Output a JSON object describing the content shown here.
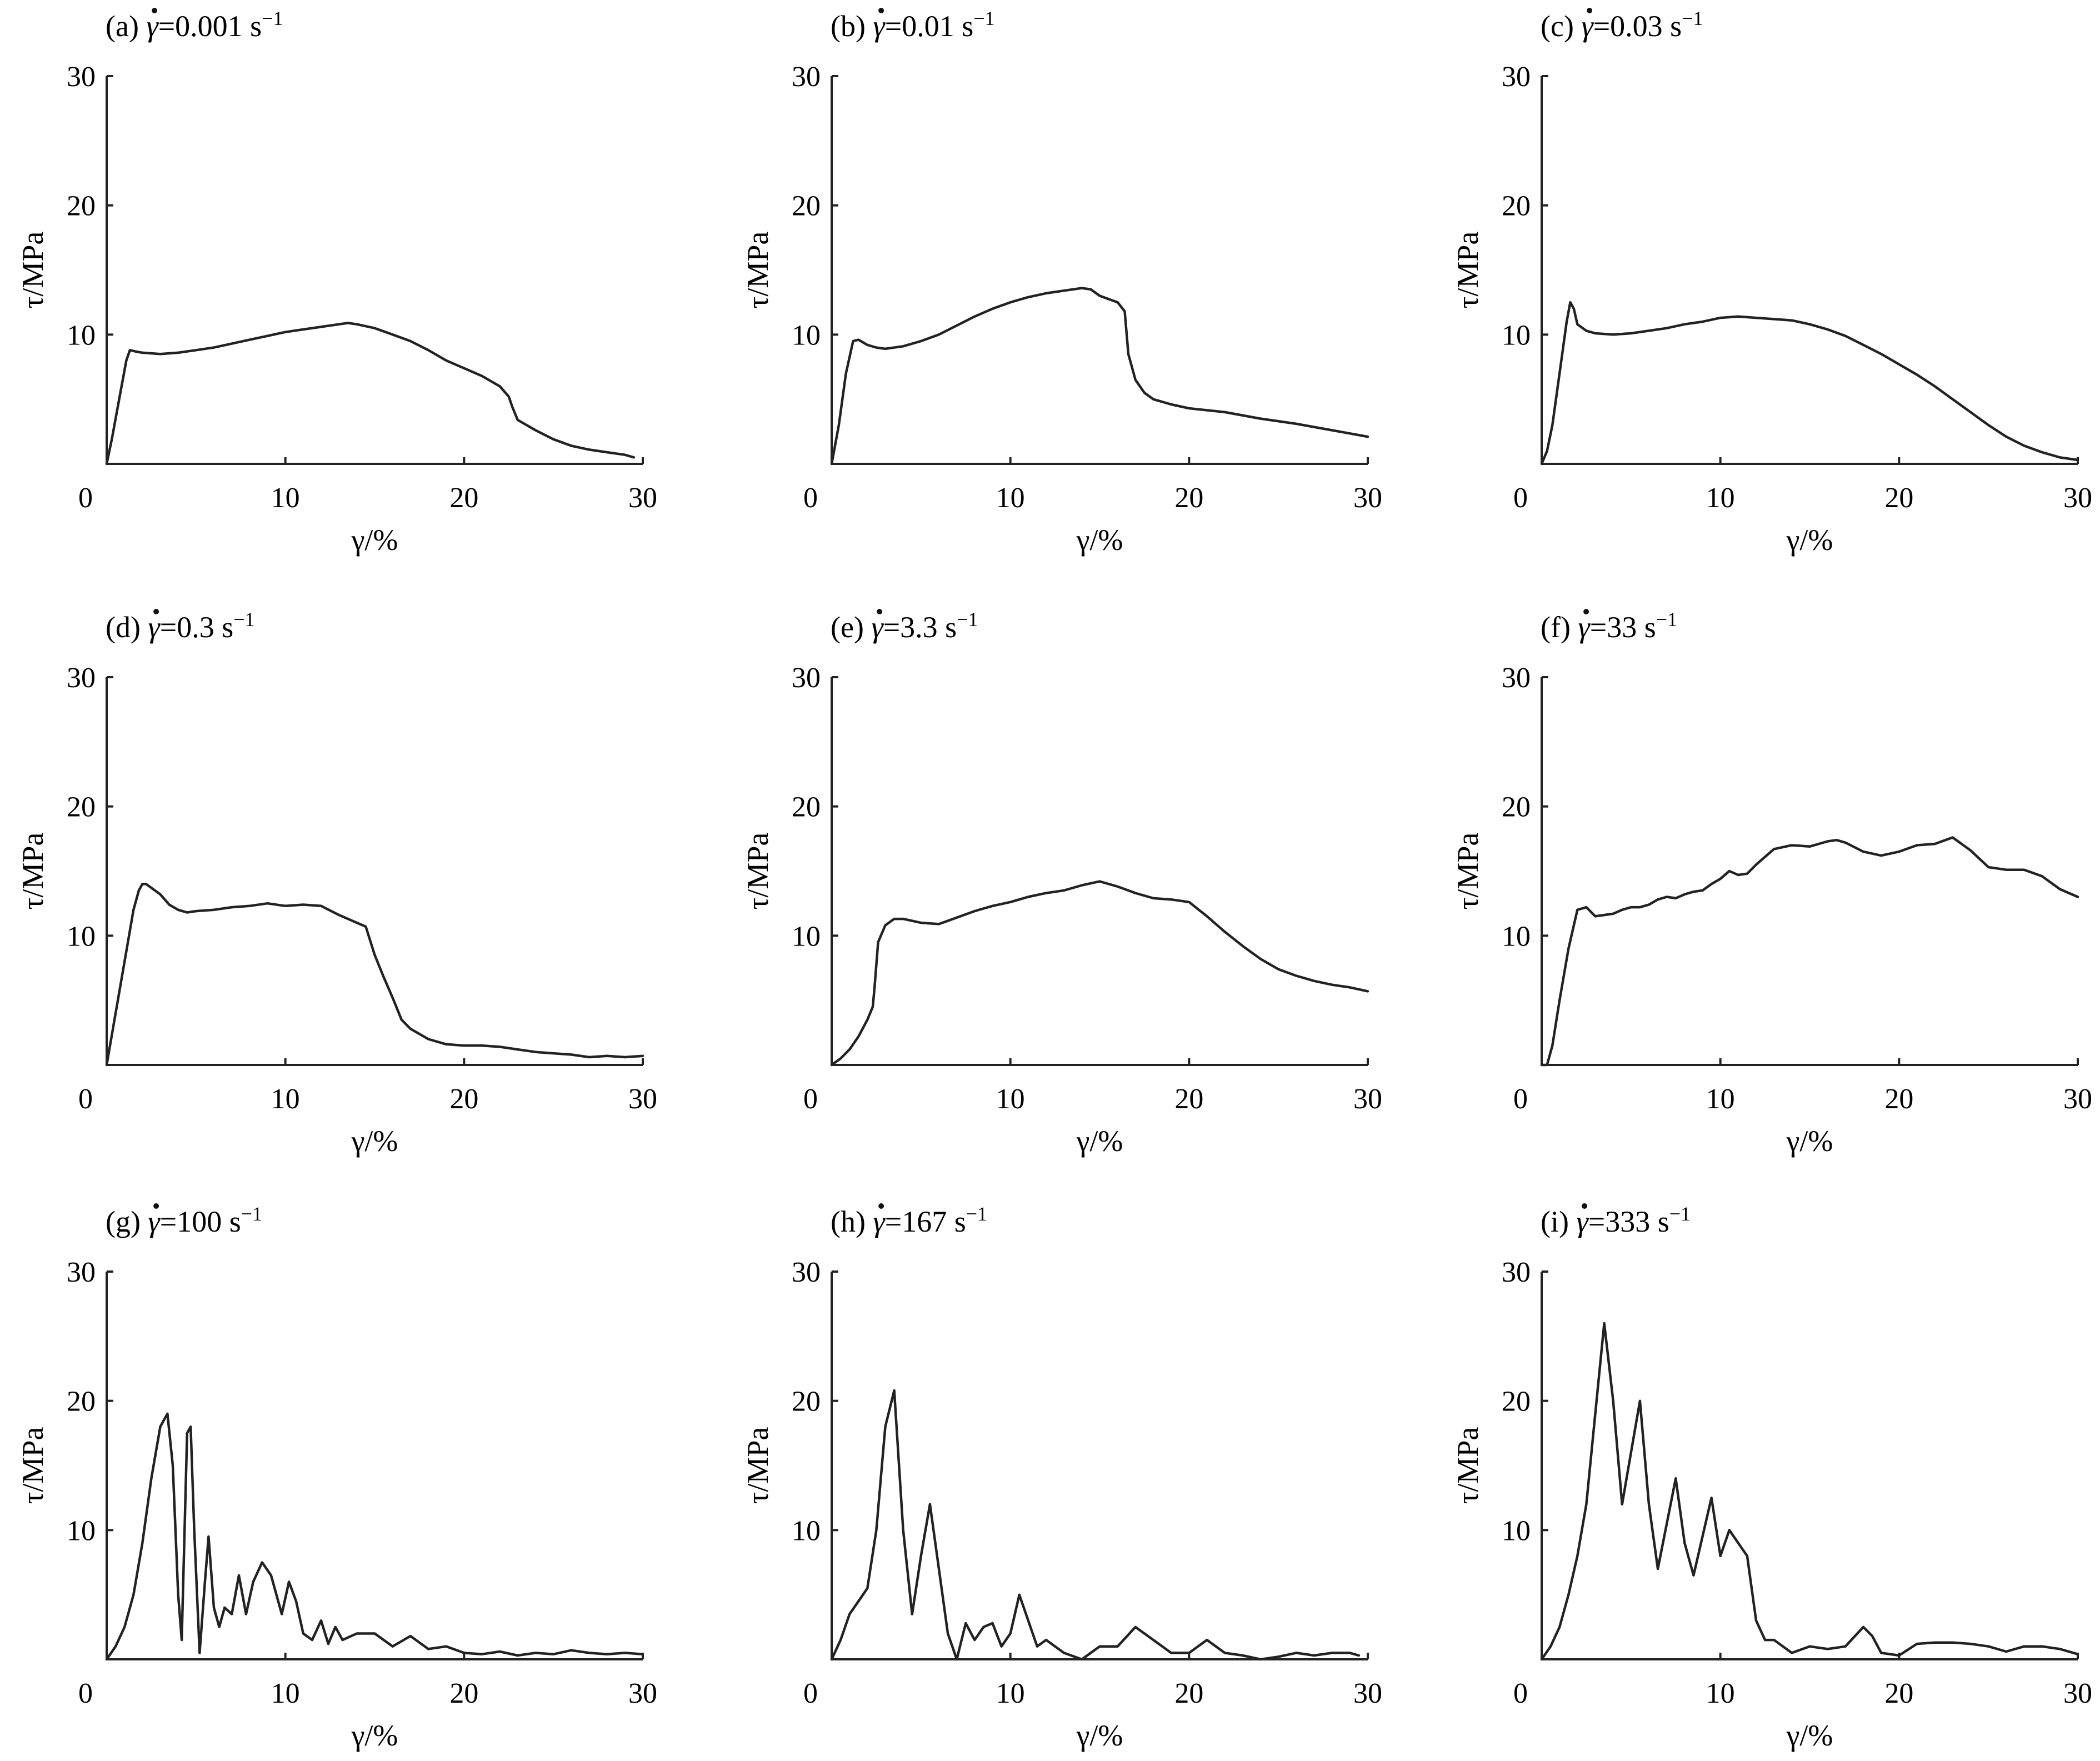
{
  "figure": {
    "chart_data": [
      {
        "type": "line",
        "title": {
          "prefix": "(a) ",
          "symbol": "γ",
          "value": "=0.001 s",
          "sup": "−1"
        },
        "xlabel": "γ/%",
        "ylabel": "τ/MPa",
        "xlim": [
          0,
          30
        ],
        "ylim": [
          0,
          30
        ],
        "xticks": [
          "0",
          "10",
          "20",
          "30"
        ],
        "yticks": [
          "10",
          "20",
          "30"
        ],
        "series": [
          {
            "x": [
              0,
              0.3,
              0.7,
              1.1,
              1.3,
              1.6,
              2,
              3,
              4,
              5,
              6,
              7,
              8,
              9,
              10,
              11,
              12,
              13,
              13.5,
              14,
              15,
              16,
              17,
              18,
              19,
              20,
              21,
              22,
              22.5,
              22.7,
              23,
              24,
              25,
              26,
              27,
              28,
              29,
              29.5
            ],
            "y": [
              0,
              2,
              5,
              8,
              8.8,
              8.7,
              8.6,
              8.5,
              8.6,
              8.8,
              9,
              9.3,
              9.6,
              9.9,
              10.2,
              10.4,
              10.6,
              10.8,
              10.9,
              10.8,
              10.5,
              10,
              9.5,
              8.8,
              8,
              7.4,
              6.8,
              6,
              5.2,
              4.4,
              3.4,
              2.6,
              1.9,
              1.4,
              1.1,
              0.9,
              0.7,
              0.5
            ]
          }
        ]
      },
      {
        "type": "line",
        "title": {
          "prefix": "(b) ",
          "symbol": "γ",
          "value": "=0.01 s",
          "sup": "−1"
        },
        "xlabel": "γ/%",
        "ylabel": "τ/MPa",
        "xlim": [
          0,
          30
        ],
        "ylim": [
          0,
          30
        ],
        "xticks": [
          "0",
          "10",
          "20",
          "30"
        ],
        "yticks": [
          "10",
          "20",
          "30"
        ],
        "series": [
          {
            "x": [
              0,
              0.4,
              0.8,
              1.2,
              1.5,
              2,
              2.5,
              3,
              4,
              5,
              6,
              7,
              8,
              9,
              10,
              11,
              12,
              13,
              14,
              14.5,
              15,
              16,
              16.4,
              16.6,
              17,
              17.5,
              18,
              19,
              20,
              22,
              24,
              26,
              28,
              30
            ],
            "y": [
              0,
              3,
              7,
              9.5,
              9.6,
              9.2,
              9,
              8.9,
              9.1,
              9.5,
              10,
              10.7,
              11.4,
              12,
              12.5,
              12.9,
              13.2,
              13.4,
              13.6,
              13.5,
              13,
              12.5,
              11.8,
              8.5,
              6.5,
              5.5,
              5,
              4.6,
              4.3,
              4,
              3.5,
              3.1,
              2.6,
              2.1
            ]
          }
        ]
      },
      {
        "type": "line",
        "title": {
          "prefix": "(c) ",
          "symbol": "γ",
          "value": "=0.03 s",
          "sup": "−1"
        },
        "xlabel": "γ/%",
        "ylabel": "τ/MPa",
        "xlim": [
          0,
          30
        ],
        "ylim": [
          0,
          30
        ],
        "xticks": [
          "0",
          "10",
          "20",
          "30"
        ],
        "yticks": [
          "10",
          "20",
          "30"
        ],
        "series": [
          {
            "x": [
              0,
              0.3,
              0.6,
              1,
              1.4,
              1.6,
              1.8,
              2,
              2.5,
              3,
              4,
              5,
              6,
              7,
              8,
              9,
              10,
              11,
              12,
              13,
              14,
              15,
              16,
              17,
              18,
              19,
              20,
              21,
              22,
              23,
              24,
              25,
              26,
              27,
              28,
              29,
              30
            ],
            "y": [
              0,
              1,
              3,
              7,
              11,
              12.5,
              12,
              10.8,
              10.3,
              10.1,
              10,
              10.1,
              10.3,
              10.5,
              10.8,
              11,
              11.3,
              11.4,
              11.3,
              11.2,
              11.1,
              10.8,
              10.4,
              9.9,
              9.2,
              8.5,
              7.7,
              6.9,
              6,
              5,
              4,
              3,
              2.1,
              1.4,
              0.9,
              0.5,
              0.3
            ]
          }
        ]
      },
      {
        "type": "line",
        "title": {
          "prefix": "(d) ",
          "symbol": "γ",
          "value": "=0.3 s",
          "sup": "−1"
        },
        "xlabel": "γ/%",
        "ylabel": "τ/MPa",
        "xlim": [
          0,
          30
        ],
        "ylim": [
          0,
          30
        ],
        "xticks": [
          "0",
          "10",
          "20",
          "30"
        ],
        "yticks": [
          "10",
          "20",
          "30"
        ],
        "series": [
          {
            "x": [
              0,
              0.5,
              1,
              1.5,
              1.8,
              2,
              2.2,
              2.5,
              3,
              3.5,
              4,
              4.5,
              5,
              6,
              7,
              8,
              9,
              10,
              11,
              12,
              13,
              14,
              14.5,
              15,
              15.5,
              16,
              16.5,
              17,
              18,
              19,
              20,
              21,
              22,
              23,
              24,
              25,
              26,
              27,
              28,
              29,
              30
            ],
            "y": [
              0,
              4,
              8,
              12,
              13.5,
              14,
              14,
              13.7,
              13.2,
              12.4,
              12,
              11.8,
              11.9,
              12,
              12.2,
              12.3,
              12.5,
              12.3,
              12.4,
              12.3,
              11.6,
              11,
              10.7,
              8.5,
              6.8,
              5.2,
              3.5,
              2.8,
              2,
              1.6,
              1.5,
              1.5,
              1.4,
              1.2,
              1,
              0.9,
              0.8,
              0.6,
              0.7,
              0.6,
              0.7
            ]
          }
        ]
      },
      {
        "type": "line",
        "title": {
          "prefix": "(e) ",
          "symbol": "γ",
          "value": "=3.3 s",
          "sup": "−1"
        },
        "xlabel": "γ/%",
        "ylabel": "τ/MPa",
        "xlim": [
          0,
          30
        ],
        "ylim": [
          0,
          30
        ],
        "xticks": [
          "0",
          "10",
          "20",
          "30"
        ],
        "yticks": [
          "10",
          "20",
          "30"
        ],
        "series": [
          {
            "x": [
              0,
              0.5,
              1,
              1.5,
              2,
              2.3,
              2.4,
              2.6,
              3,
              3.5,
              4,
              5,
              6,
              7,
              8,
              9,
              10,
              11,
              12,
              13,
              14,
              15,
              16,
              17,
              18,
              19,
              20,
              21,
              22,
              23,
              24,
              25,
              26,
              27,
              28,
              29,
              30
            ],
            "y": [
              0,
              0.5,
              1.2,
              2.2,
              3.5,
              4.5,
              6,
              9.5,
              10.8,
              11.3,
              11.3,
              11,
              10.9,
              11.4,
              11.9,
              12.3,
              12.6,
              13,
              13.3,
              13.5,
              13.9,
              14.2,
              13.8,
              13.3,
              12.9,
              12.8,
              12.6,
              11.5,
              10.3,
              9.2,
              8.2,
              7.4,
              6.9,
              6.5,
              6.2,
              6,
              5.7
            ]
          }
        ]
      },
      {
        "type": "line",
        "title": {
          "prefix": "(f) ",
          "symbol": "γ",
          "value": "=33 s",
          "sup": "−1"
        },
        "xlabel": "γ/%",
        "ylabel": "τ/MPa",
        "xlim": [
          0,
          30
        ],
        "ylim": [
          0,
          30
        ],
        "xticks": [
          "0",
          "10",
          "20",
          "30"
        ],
        "yticks": [
          "10",
          "20",
          "30"
        ],
        "series": [
          {
            "x": [
              0,
              0.3,
              0.6,
              1,
              1.5,
              2,
              2.5,
              3,
              3.5,
              4,
              4.5,
              5,
              5.5,
              6,
              6.5,
              7,
              7.5,
              8,
              8.5,
              9,
              9.5,
              10,
              10.5,
              11,
              11.5,
              12,
              13,
              14,
              15,
              16,
              16.5,
              17,
              18,
              19,
              20,
              21,
              22,
              23,
              24,
              25,
              26,
              27,
              28,
              29,
              30
            ],
            "y": [
              0,
              0,
              1.5,
              5,
              9,
              12,
              12.2,
              11.5,
              11.6,
              11.7,
              12,
              12.2,
              12.2,
              12.4,
              12.8,
              13,
              12.9,
              13.2,
              13.4,
              13.5,
              14,
              14.4,
              15,
              14.7,
              14.8,
              15.5,
              16.7,
              17,
              16.9,
              17.3,
              17.4,
              17.2,
              16.5,
              16.2,
              16.5,
              17,
              17.1,
              17.6,
              16.6,
              15.3,
              15.1,
              15.1,
              14.6,
              13.6,
              13
            ]
          }
        ]
      },
      {
        "type": "line",
        "title": {
          "prefix": "(g) ",
          "symbol": "γ",
          "value": "=100 s",
          "sup": "−1"
        },
        "xlabel": "γ/%",
        "ylabel": "τ/MPa",
        "xlim": [
          0,
          30
        ],
        "ylim": [
          0,
          30
        ],
        "xticks": [
          "0",
          "10",
          "20",
          "30"
        ],
        "yticks": [
          "10",
          "20",
          "30"
        ],
        "series": [
          {
            "x": [
              0,
              0.5,
              1,
              1.5,
              2,
              2.5,
              3,
              3.4,
              3.7,
              4,
              4.2,
              4.5,
              4.7,
              4.9,
              5.2,
              5.5,
              5.7,
              6,
              6.3,
              6.6,
              7,
              7.4,
              7.8,
              8.2,
              8.7,
              9.2,
              9.8,
              10.2,
              10.6,
              11,
              11.5,
              12,
              12.4,
              12.8,
              13.2,
              14,
              15,
              16,
              17,
              18,
              19,
              20,
              21,
              22,
              23,
              24,
              25,
              26,
              27,
              28,
              29,
              30
            ],
            "y": [
              0,
              1,
              2.5,
              5,
              9,
              14,
              18,
              19,
              15,
              5,
              1.5,
              17.5,
              18,
              10,
              0.5,
              6,
              9.5,
              4,
              2.5,
              4,
              3.5,
              6.5,
              3.5,
              6,
              7.5,
              6.5,
              3.5,
              6,
              4.5,
              2,
              1.5,
              3,
              1.2,
              2.5,
              1.5,
              2,
              2,
              1,
              1.8,
              0.8,
              1,
              0.5,
              0.4,
              0.6,
              0.3,
              0.5,
              0.4,
              0.7,
              0.5,
              0.4,
              0.5,
              0.4
            ]
          }
        ]
      },
      {
        "type": "line",
        "title": {
          "prefix": "(h) ",
          "symbol": "γ",
          "value": "=167 s",
          "sup": "−1"
        },
        "xlabel": "γ/%",
        "ylabel": "τ/MPa",
        "xlim": [
          0,
          30
        ],
        "ylim": [
          0,
          30
        ],
        "xticks": [
          "0",
          "10",
          "20",
          "30"
        ],
        "yticks": [
          "10",
          "20",
          "30"
        ],
        "series": [
          {
            "x": [
              0,
              0.5,
              1,
              1.5,
              2,
              2.5,
              3,
              3.5,
              4,
              4.5,
              5,
              5.5,
              6,
              6.5,
              7,
              7.5,
              8,
              8.5,
              9,
              9.5,
              10,
              10.5,
              11,
              11.5,
              12,
              13,
              14,
              15,
              16,
              17,
              18,
              19,
              20,
              21,
              22,
              23,
              24,
              25,
              26,
              27,
              28,
              29,
              29.5
            ],
            "y": [
              0,
              1.5,
              3.5,
              4.5,
              5.5,
              10,
              18,
              20.8,
              10,
              3.5,
              8,
              12,
              7,
              2,
              0,
              2.8,
              1.5,
              2.5,
              2.8,
              1,
              2,
              5,
              3,
              1,
              1.5,
              0.5,
              0,
              1,
              1,
              2.5,
              1.5,
              0.5,
              0.5,
              1.5,
              0.5,
              0.3,
              0,
              0.2,
              0.5,
              0.3,
              0.5,
              0.5,
              0.3
            ]
          }
        ]
      },
      {
        "type": "line",
        "title": {
          "prefix": "(i) ",
          "symbol": "γ",
          "value": "=333 s",
          "sup": "−1"
        },
        "xlabel": "γ/%",
        "ylabel": "τ/MPa",
        "xlim": [
          0,
          30
        ],
        "ylim": [
          0,
          30
        ],
        "xticks": [
          "0",
          "10",
          "20",
          "30"
        ],
        "yticks": [
          "10",
          "20",
          "30"
        ],
        "series": [
          {
            "x": [
              0,
              0.5,
              1,
              1.5,
              2,
              2.5,
              3,
              3.5,
              4,
              4.5,
              5,
              5.5,
              6,
              6.5,
              7,
              7.5,
              8,
              8.5,
              9,
              9.5,
              10,
              10.5,
              11,
              11.5,
              12,
              12.5,
              13,
              14,
              15,
              16,
              17,
              18,
              18.5,
              19,
              20,
              21,
              22,
              23,
              24,
              25,
              26,
              27,
              28,
              29,
              30
            ],
            "y": [
              0,
              1,
              2.5,
              5,
              8,
              12,
              19,
              26,
              20,
              12,
              16,
              20,
              12,
              7,
              10.5,
              14,
              9,
              6.5,
              9.5,
              12.5,
              8,
              10,
              9,
              8,
              3,
              1.5,
              1.5,
              0.5,
              1,
              0.8,
              1,
              2.5,
              1.8,
              0.5,
              0.3,
              1.2,
              1.3,
              1.3,
              1.2,
              1,
              0.6,
              1,
              1,
              0.8,
              0.4
            ]
          }
        ]
      }
    ]
  }
}
